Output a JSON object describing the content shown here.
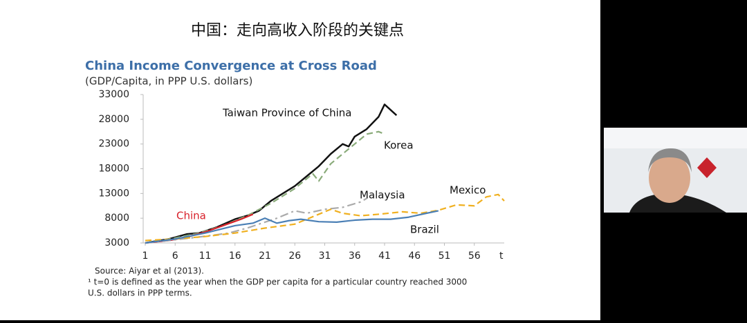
{
  "slide_title": "中国：走向高收入阶段的关键点",
  "chart_data": {
    "type": "line",
    "title": "China Income Convergence at Cross Road",
    "subtitle": "(GDP/Capita, in PPP U.S. dollars)",
    "xlabel": "t",
    "xlim": [
      1,
      61
    ],
    "xticks": [
      1,
      6,
      11,
      16,
      21,
      26,
      31,
      36,
      41,
      46,
      51,
      56
    ],
    "ylim": [
      3000,
      33000
    ],
    "yticks": [
      3000,
      8000,
      13000,
      18000,
      23000,
      28000,
      33000
    ],
    "grid": false,
    "series": [
      {
        "name": "Taiwan Province of China",
        "color": "#111111",
        "style": "solid",
        "x": [
          1,
          5,
          8,
          10,
          13,
          16,
          18,
          20,
          22,
          24,
          26,
          28,
          30,
          32,
          34,
          35,
          36,
          38,
          40,
          41,
          43
        ],
        "values": [
          3000,
          3800,
          4800,
          5000,
          6200,
          7800,
          8500,
          9500,
          11500,
          13000,
          14500,
          16500,
          18500,
          21000,
          23000,
          22500,
          24500,
          26000,
          28500,
          31000,
          28800
        ]
      },
      {
        "name": "Korea",
        "color": "#8aab7a",
        "style": "dashed",
        "x": [
          1,
          6,
          10,
          14,
          18,
          22,
          26,
          29,
          30,
          32,
          34,
          36,
          38,
          40,
          41
        ],
        "values": [
          3000,
          4000,
          5000,
          6500,
          8500,
          11000,
          14000,
          17000,
          15500,
          19000,
          21000,
          23000,
          25000,
          25500,
          25000
        ]
      },
      {
        "name": "China",
        "color": "#d8202a",
        "style": "solid",
        "x": [
          1,
          5,
          8,
          11,
          14,
          17,
          19
        ],
        "values": [
          3000,
          3500,
          4200,
          5200,
          6500,
          7800,
          8800
        ]
      },
      {
        "name": "Malaysia",
        "color": "#aaaaaa",
        "style": "dashdot",
        "x": [
          1,
          5,
          10,
          15,
          18,
          20,
          23,
          26,
          28,
          31,
          34,
          37,
          38
        ],
        "values": [
          3000,
          3500,
          4200,
          5000,
          6000,
          6800,
          8000,
          9500,
          9000,
          9800,
          10200,
          11300,
          12000
        ]
      },
      {
        "name": "Mexico",
        "color": "#f0b020",
        "style": "dashed",
        "x": [
          1,
          6,
          11,
          16,
          21,
          26,
          30,
          32,
          34,
          37,
          40,
          44,
          47,
          50,
          53,
          56,
          58,
          60,
          61
        ],
        "values": [
          3500,
          3800,
          4300,
          5000,
          6000,
          6800,
          8800,
          9800,
          9000,
          8500,
          8800,
          9300,
          9000,
          9600,
          10700,
          10500,
          12300,
          12800,
          11500
        ]
      },
      {
        "name": "Brazil",
        "color": "#4a7fb5",
        "style": "solid",
        "x": [
          1,
          6,
          11,
          16,
          19,
          21,
          23,
          25,
          27,
          30,
          33,
          36,
          39,
          42,
          45,
          48,
          50
        ],
        "values": [
          3000,
          3800,
          5000,
          6500,
          7000,
          8000,
          7000,
          7500,
          7800,
          7300,
          7200,
          7600,
          7800,
          7800,
          8200,
          9000,
          9500
        ]
      }
    ],
    "notes": [
      "Source: Aiyar et al (2013).",
      "¹ t=0 is defined as the year when the GDP per capita for a particular country reached 3000",
      "U.S. dollars in PPP terms."
    ]
  }
}
